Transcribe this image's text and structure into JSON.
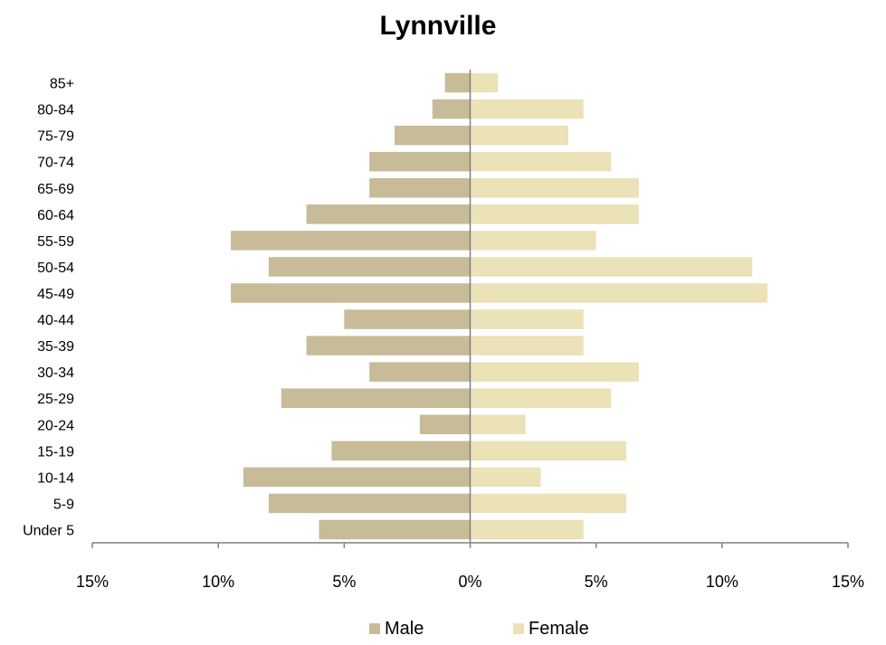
{
  "chart_data": {
    "type": "bar",
    "orientation": "horizontal",
    "subtype": "population-pyramid",
    "title": "Lynnville",
    "categories": [
      "85+",
      "80-84",
      "75-79",
      "70-74",
      "65-69",
      "60-64",
      "55-59",
      "50-54",
      "45-49",
      "40-44",
      "35-39",
      "30-34",
      "25-29",
      "20-24",
      "15-19",
      "10-14",
      "5-9",
      "Under 5"
    ],
    "series": [
      {
        "name": "Male",
        "color": "#c8bb98",
        "direction": "left",
        "values": [
          1.0,
          1.5,
          3.0,
          4.0,
          4.0,
          6.5,
          9.5,
          8.0,
          9.5,
          5.0,
          6.5,
          4.0,
          7.5,
          2.0,
          5.5,
          9.0,
          8.0,
          6.0
        ]
      },
      {
        "name": "Female",
        "color": "#ebe2b8",
        "direction": "right",
        "values": [
          1.1,
          4.5,
          3.9,
          5.6,
          6.7,
          6.7,
          5.0,
          11.2,
          11.8,
          4.5,
          4.5,
          6.7,
          5.6,
          2.2,
          6.2,
          2.8,
          6.2,
          4.5
        ]
      }
    ],
    "xlim": [
      -15,
      15
    ],
    "xticks": [
      -15,
      -10,
      -5,
      0,
      5,
      10,
      15
    ],
    "xtick_labels": [
      "15%",
      "10%",
      "5%",
      "0%",
      "5%",
      "10%",
      "15%"
    ],
    "grid": false,
    "legend_position": "bottom"
  }
}
